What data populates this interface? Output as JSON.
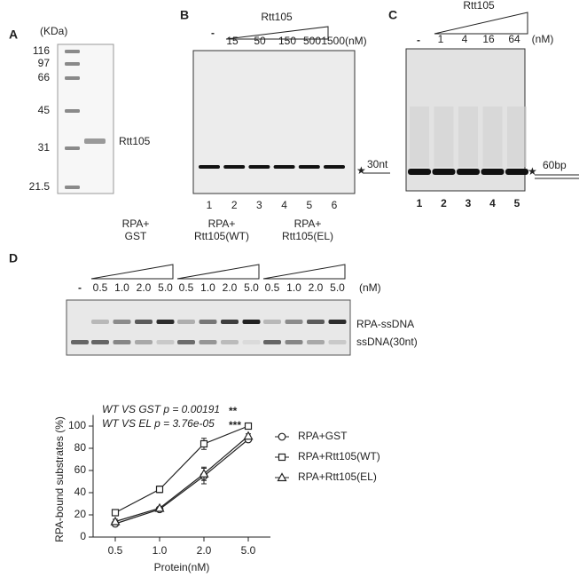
{
  "panelA": {
    "label": "A",
    "unit": "(KDa)",
    "markers": [
      "116",
      "97",
      "66",
      "45",
      "31",
      "21.5"
    ],
    "sample": "Rtt105"
  },
  "panelB": {
    "label": "B",
    "control": "-",
    "protein": "Rtt105",
    "concs": [
      "15",
      "50",
      "150",
      "500",
      "1500(nM)"
    ],
    "lanes": [
      "1",
      "2",
      "3",
      "4",
      "5",
      "6"
    ],
    "star": "★",
    "substrate": "30nt"
  },
  "panelC": {
    "label": "C",
    "control": "-",
    "protein": "Rtt105",
    "concs": [
      "1",
      "4",
      "16",
      "64",
      "(nM)"
    ],
    "lanes": [
      "1",
      "2",
      "3",
      "4",
      "5"
    ],
    "star": "★",
    "substrate": "60bp"
  },
  "panelD": {
    "label": "D",
    "control": "-",
    "groups": [
      {
        "lines": [
          "RPA+",
          "GST"
        ],
        "concs": [
          "0.5",
          "1.0",
          "2.0",
          "5.0"
        ]
      },
      {
        "lines": [
          "RPA+",
          "Rtt105(WT)"
        ],
        "concs": [
          "0.5",
          "1.0",
          "2.0",
          "5.0"
        ]
      },
      {
        "lines": [
          "RPA+",
          "Rtt105(EL)"
        ],
        "concs": [
          "0.5",
          "1.0",
          "2.0",
          "5.0"
        ]
      }
    ],
    "unit": "(nM)",
    "bands": [
      "RPA-ssDNA",
      "ssDNA(30nt)"
    ]
  },
  "chart_data": {
    "type": "line",
    "ylabel": "RPA-bound substrates (%)",
    "xlabel": "Protein(nM)",
    "categories": [
      "0.5",
      "1.0",
      "2.0",
      "5.0"
    ],
    "ylim": [
      0,
      110
    ],
    "yticks": [
      0,
      20,
      40,
      60,
      80,
      100
    ],
    "annotations": [
      {
        "text": "WT VS GST p = 0.00191",
        "stars": "**"
      },
      {
        "text": "WT VS EL p = 3.76e-05",
        "stars": "***"
      }
    ],
    "series": [
      {
        "name": "RPA+GST",
        "color": "#222222",
        "marker": "circle",
        "values": [
          12,
          25,
          55,
          88
        ],
        "errors": [
          1,
          1,
          7,
          2
        ]
      },
      {
        "name": "RPA+Rtt105(WT)",
        "color": "#222222",
        "marker": "square",
        "values": [
          22,
          43,
          84,
          100
        ],
        "errors": [
          1,
          3,
          5,
          1
        ]
      },
      {
        "name": "RPA+Rtt105(EL)",
        "color": "#222222",
        "marker": "triangle",
        "values": [
          14,
          26,
          57,
          91
        ],
        "errors": [
          2,
          1,
          6,
          2
        ]
      }
    ]
  }
}
